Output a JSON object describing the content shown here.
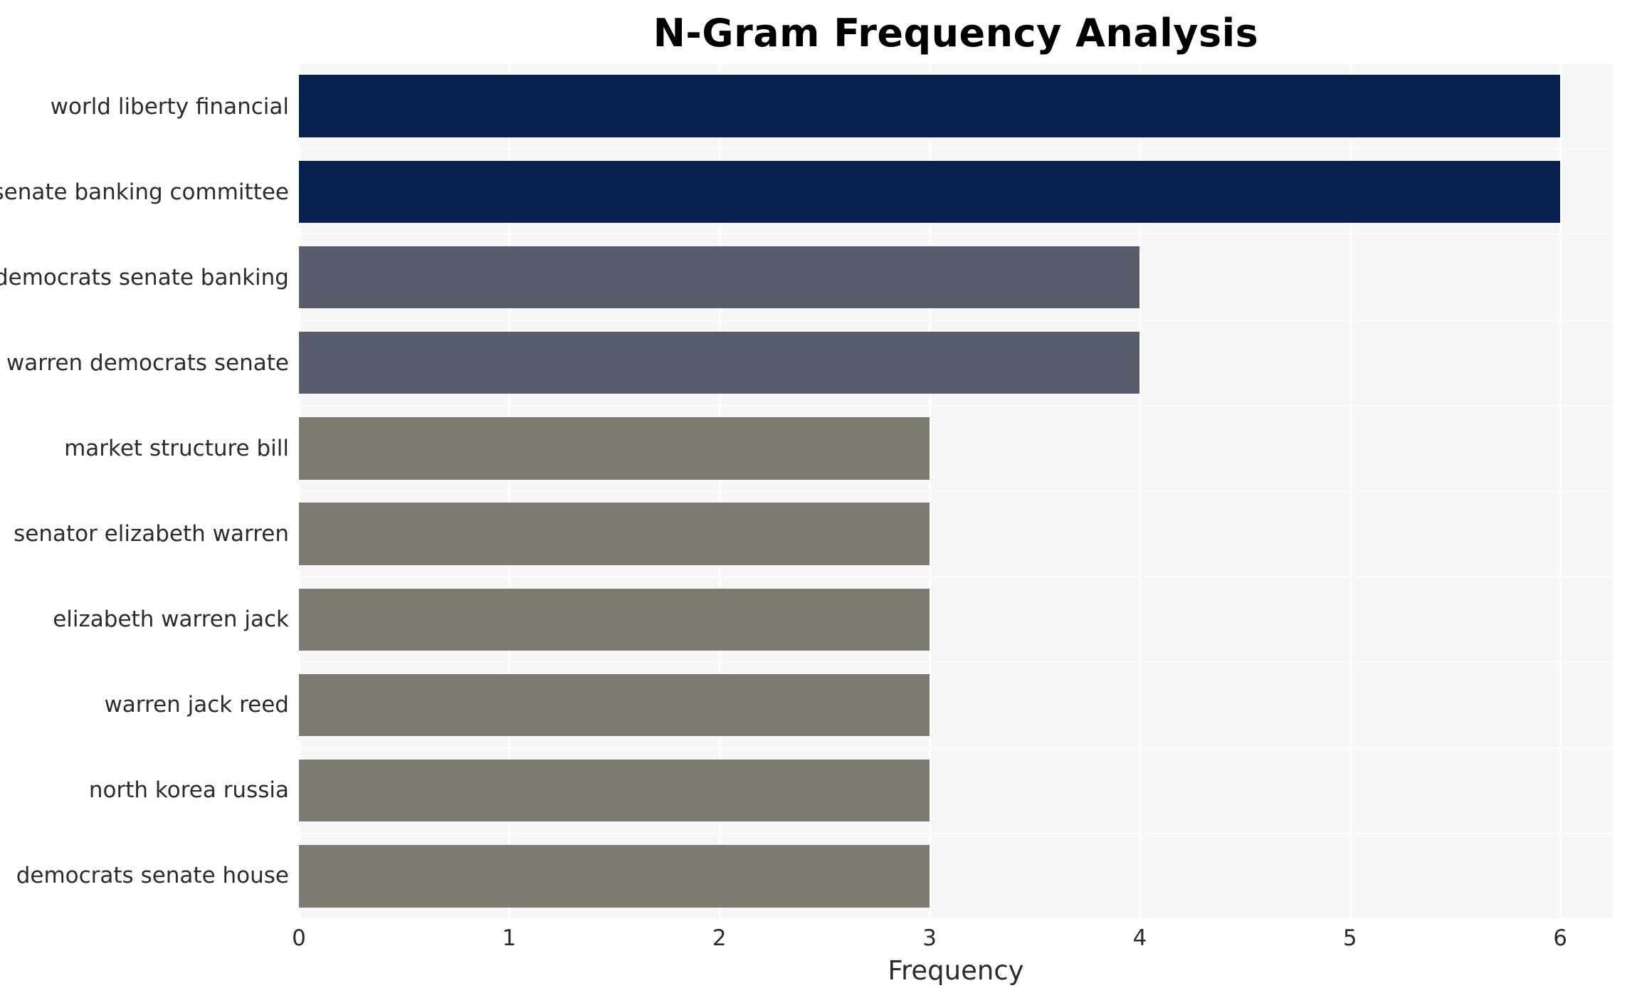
{
  "title": "N-Gram Frequency Analysis",
  "chart_data": {
    "type": "bar",
    "orientation": "horizontal",
    "title": "N-Gram Frequency Analysis",
    "categories": [
      "world liberty financial",
      "senate banking committee",
      "democrats senate banking",
      "warren democrats senate",
      "market structure bill",
      "senator elizabeth warren",
      "elizabeth warren jack",
      "warren jack reed",
      "north korea russia",
      "democrats senate house"
    ],
    "values": [
      6,
      6,
      4,
      4,
      3,
      3,
      3,
      3,
      3,
      3
    ],
    "bar_colors": [
      "#062150",
      "#062150",
      "#575d6d",
      "#575d6d",
      "#7c7b72",
      "#7c7b72",
      "#7c7b72",
      "#7c7b72",
      "#7c7b72",
      "#7c7b72"
    ],
    "xlabel": "Frequency",
    "ylabel": "",
    "xlim": [
      0,
      6.25
    ],
    "xticks": [
      0,
      1,
      2,
      3,
      4,
      5,
      6
    ],
    "grid": true,
    "legend": "none",
    "plot_background": "#f7f7f7",
    "grid_color": "#ffffff",
    "text_color": "#2b2b2b"
  }
}
